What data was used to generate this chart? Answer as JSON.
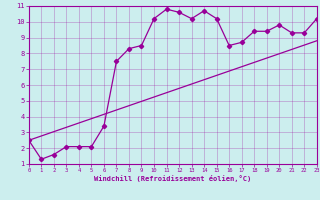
{
  "xlabel": "Windchill (Refroidissement éolien,°C)",
  "bg_color": "#cceeee",
  "line_color": "#990099",
  "xlim": [
    0,
    23
  ],
  "ylim": [
    1,
    11
  ],
  "xticks": [
    0,
    1,
    2,
    3,
    4,
    5,
    6,
    7,
    8,
    9,
    10,
    11,
    12,
    13,
    14,
    15,
    16,
    17,
    18,
    19,
    20,
    21,
    22,
    23
  ],
  "yticks": [
    1,
    2,
    3,
    4,
    5,
    6,
    7,
    8,
    9,
    10,
    11
  ],
  "line1_x": [
    0,
    1,
    2,
    3,
    4,
    5,
    6,
    7,
    8,
    9,
    10,
    11,
    12,
    13,
    14,
    15,
    16,
    17,
    18,
    19,
    20,
    21,
    22,
    23
  ],
  "line1_y": [
    2.5,
    1.3,
    1.6,
    2.1,
    2.1,
    2.1,
    3.4,
    7.5,
    8.3,
    8.5,
    10.2,
    10.8,
    10.6,
    10.2,
    10.7,
    10.2,
    8.5,
    8.7,
    9.4,
    9.4,
    9.8,
    9.3,
    9.3,
    10.2
  ],
  "line2_x": [
    0,
    23
  ],
  "line2_y": [
    2.5,
    8.8
  ],
  "marker": "D",
  "markersize": 2.2,
  "linewidth": 0.9,
  "x_tick_fontsize": 4.0,
  "y_tick_fontsize": 5.0,
  "xlabel_fontsize": 5.0
}
